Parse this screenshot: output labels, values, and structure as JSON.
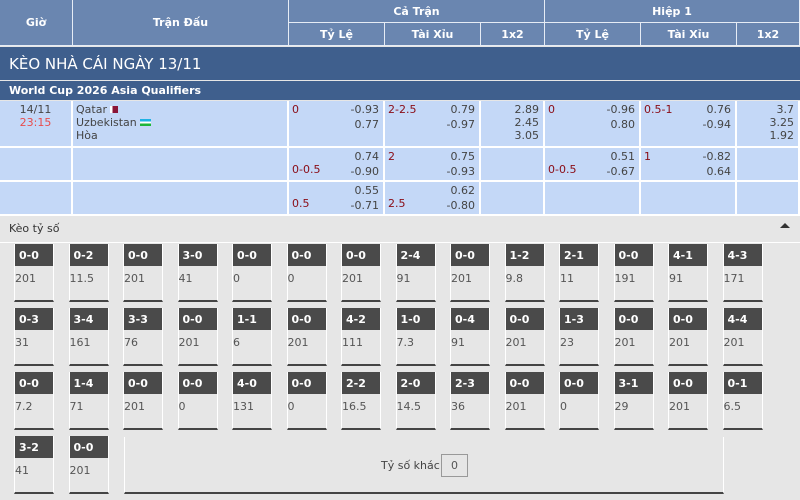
{
  "header": {
    "gio": "Giờ",
    "tran_dau": "Trận Đấu",
    "ca_tran": "Cả Trận",
    "hiep1": "Hiệp 1",
    "ty_le": "Tỷ Lệ",
    "tai_xiu": "Tài Xỉu",
    "x12": "1x2"
  },
  "title": "KÈO NHÀ CÁI NGÀY 13/11",
  "league": "World Cup 2026 Asia Qualifiers",
  "match": {
    "date": "14/11",
    "time": "23:15",
    "home": "Qatar",
    "away": "Uzbekistan",
    "draw": "Hòa"
  },
  "rows": [
    {
      "ft_hdp": "0",
      "ft_hdp_o": [
        "-0.93",
        "0.77"
      ],
      "ft_ou": "2-2.5",
      "ft_ou_o": [
        "0.79",
        "-0.97"
      ],
      "ft_1x2": [
        "2.89",
        "2.45",
        "3.05"
      ],
      "h1_hdp": "0",
      "h1_hdp_o": [
        "-0.96",
        "0.80"
      ],
      "h1_ou": "0.5-1",
      "h1_ou_o": [
        "0.76",
        "-0.94"
      ],
      "h1_1x2": [
        "3.7",
        "3.25",
        "1.92"
      ]
    },
    {
      "ft_hdp": "0-0.5",
      "ft_hdp_o": [
        "0.74",
        "-0.90"
      ],
      "ft_ou": "2",
      "ft_ou_o": [
        "0.75",
        "-0.93"
      ],
      "h1_hdp": "0-0.5",
      "h1_hdp_o": [
        "0.51",
        "-0.67"
      ],
      "h1_ou": "1",
      "h1_ou_o": [
        "-0.82",
        "0.64"
      ]
    },
    {
      "ft_hdp": "0.5",
      "ft_hdp_o": [
        "0.55",
        "-0.71"
      ],
      "ft_ou": "2.5",
      "ft_ou_o": [
        "0.62",
        "-0.80"
      ]
    }
  ],
  "correct_score": {
    "label": "Kèo tỷ số",
    "other_label": "Tỷ số khác",
    "other_value": "0",
    "items": [
      [
        "0-0",
        "201"
      ],
      [
        "0-2",
        "11.5"
      ],
      [
        "0-0",
        "201"
      ],
      [
        "3-0",
        "41"
      ],
      [
        "0-0",
        "0"
      ],
      [
        "0-0",
        "0"
      ],
      [
        "0-0",
        "201"
      ],
      [
        "2-4",
        "91"
      ],
      [
        "0-0",
        "201"
      ],
      [
        "1-2",
        "9.8"
      ],
      [
        "2-1",
        "11"
      ],
      [
        "0-0",
        "191"
      ],
      [
        "4-1",
        "91"
      ],
      [
        "4-3",
        "171"
      ],
      [
        "0-3",
        "31"
      ],
      [
        "3-4",
        "161"
      ],
      [
        "3-3",
        "76"
      ],
      [
        "0-0",
        "201"
      ],
      [
        "1-1",
        "6"
      ],
      [
        "0-0",
        "201"
      ],
      [
        "4-2",
        "111"
      ],
      [
        "1-0",
        "7.3"
      ],
      [
        "0-4",
        "91"
      ],
      [
        "0-0",
        "201"
      ],
      [
        "1-3",
        "23"
      ],
      [
        "0-0",
        "201"
      ],
      [
        "0-0",
        "201"
      ],
      [
        "4-4",
        "201"
      ],
      [
        "0-0",
        "7.2"
      ],
      [
        "1-4",
        "71"
      ],
      [
        "0-0",
        "201"
      ],
      [
        "0-0",
        "0"
      ],
      [
        "4-0",
        "131"
      ],
      [
        "0-0",
        "0"
      ],
      [
        "2-2",
        "16.5"
      ],
      [
        "2-0",
        "14.5"
      ],
      [
        "2-3",
        "36"
      ],
      [
        "0-0",
        "201"
      ],
      [
        "0-0",
        "0"
      ],
      [
        "3-1",
        "29"
      ],
      [
        "0-0",
        "201"
      ],
      [
        "0-1",
        "6.5"
      ],
      [
        "3-2",
        "41"
      ],
      [
        "0-0",
        "201"
      ]
    ]
  }
}
